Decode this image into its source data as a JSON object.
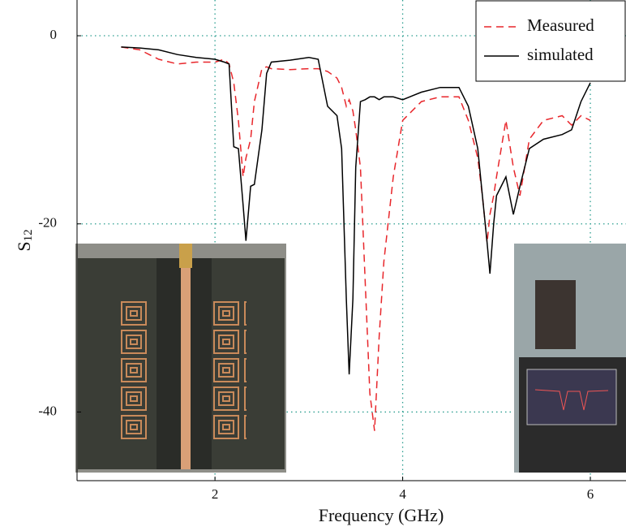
{
  "chart_data": {
    "type": "line",
    "xlabel": "Frequency (GHz)",
    "ylabel": "S",
    "ylabel_sub": "12",
    "x": [
      1.0,
      1.2,
      1.4,
      1.6,
      1.8,
      2.0,
      2.1,
      2.15,
      2.2,
      2.25,
      2.3,
      2.33,
      2.38,
      2.42,
      2.5,
      2.55,
      2.6,
      2.8,
      3.0,
      3.1,
      3.2,
      3.3,
      3.35,
      3.4,
      3.43,
      3.47,
      3.5,
      3.55,
      3.6,
      3.65,
      3.7,
      3.75,
      3.8,
      3.9,
      4.0,
      4.2,
      4.4,
      4.6,
      4.7,
      4.8,
      4.85,
      4.9,
      4.93,
      4.97,
      5.0,
      5.1,
      5.18,
      5.25,
      5.35,
      5.5,
      5.7,
      5.8,
      5.9,
      6.0
    ],
    "series": [
      {
        "name": "Measured",
        "color": "#e8262b",
        "dash": true,
        "values": [
          -1.2,
          -1.5,
          -2.5,
          -3.0,
          -2.8,
          -2.8,
          -2.5,
          -3.0,
          -5,
          -9,
          -15,
          -13,
          -11,
          -7,
          -3.5,
          -3.3,
          -3.5,
          -3.6,
          -3.5,
          -3.5,
          -3.8,
          -4.5,
          -5.5,
          -7.5,
          -6.8,
          -8,
          -10,
          -14,
          -26,
          -38,
          -42,
          -32,
          -24,
          -15,
          -9,
          -7,
          -6.5,
          -6.5,
          -9,
          -13,
          -17,
          -22,
          -19,
          -17,
          -15,
          -9,
          -14,
          -17,
          -11,
          -9,
          -8.5,
          -9.5,
          -8.5,
          -9
        ]
      },
      {
        "name": "simulated",
        "color": "#000000",
        "dash": false,
        "values": [
          -1.2,
          -1.3,
          -1.5,
          -2.0,
          -2.3,
          -2.5,
          -2.8,
          -3.0,
          -11.8,
          -12,
          -18,
          -21.8,
          -16,
          -15.8,
          -10,
          -4,
          -2.8,
          -2.6,
          -2.3,
          -2.5,
          -7.5,
          -8.5,
          -12,
          -28,
          -36,
          -28,
          -14,
          -7,
          -6.8,
          -6.5,
          -6.5,
          -6.8,
          -6.5,
          -6.5,
          -6.8,
          -6.0,
          -5.5,
          -5.5,
          -7.5,
          -12,
          -17,
          -22,
          -25.3,
          -20,
          -17,
          -15,
          -19,
          -16,
          -12,
          -11,
          -10.5,
          -10,
          -7,
          -5
        ]
      }
    ],
    "xlim": [
      0.53,
      6.38
    ],
    "ylim": [
      -47.3,
      3.8
    ],
    "xticks": [
      2,
      4,
      6
    ],
    "yticks": [
      0,
      -20,
      -40
    ],
    "grid": true,
    "legend": "upper right"
  }
}
